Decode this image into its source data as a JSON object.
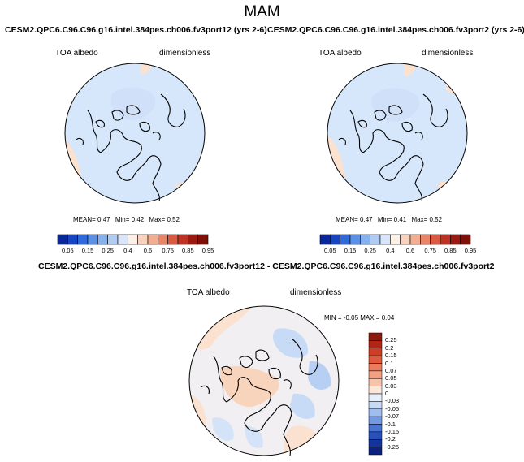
{
  "title": "MAM",
  "colors": {
    "ocean": "#d6e7fb",
    "warm": "#fbe1cf",
    "cool": "#c8dbf6",
    "coast": "#000000",
    "blue_dark": "#0b2f8f",
    "red_dark": "#8b1a0f"
  },
  "panels": [
    {
      "id": "panel-left",
      "title": "CESM2.QPC6.C96.C96.g16.intel.384pes.ch006.fv3port12 (yrs 2-6)",
      "variable": "TOA albedo",
      "units": "dimensionless",
      "stats": {
        "mean_label": "MEAN=",
        "mean": "0.47",
        "min_label": "Min=",
        "min": "0.42",
        "max_label": "Max=",
        "max": "0.52"
      }
    },
    {
      "id": "panel-right",
      "title": "CESM2.QPC6.C96.C96.g16.intel.384pes.ch006.fv3port2 (yrs 2-6)",
      "variable": "TOA albedo",
      "units": "dimensionless",
      "stats": {
        "mean_label": "MEAN=",
        "mean": "0.47",
        "min_label": "Min=",
        "min": "0.41",
        "max_label": "Max=",
        "max": "0.52"
      }
    },
    {
      "id": "panel-diff",
      "title": "CESM2.QPC6.C96.C96.g16.intel.384pes.ch006.fv3port12 - CESM2.QPC6.C96.C96.g16.intel.384pes.ch006.fv3port2",
      "variable": "TOA albedo",
      "units": "dimensionless",
      "stats_text": "MIN = -0.05 MAX = 0.04"
    }
  ],
  "colorbar_abs": {
    "ticks": [
      "0.05",
      "0.15",
      "0.25",
      "0.4",
      "0.6",
      "0.75",
      "0.85",
      "0.95"
    ],
    "colors": [
      "#08279a",
      "#1446c2",
      "#2e6bd9",
      "#5891e6",
      "#85b1ef",
      "#b0ccf5",
      "#d9e6fa",
      "#fdf0e6",
      "#f9d2bd",
      "#f3ad91",
      "#ea8466",
      "#d85a41",
      "#bd3323",
      "#9c1b10",
      "#7d1107"
    ]
  },
  "colorbar_diff": {
    "ticks": [
      "0.25",
      "0.2",
      "0.15",
      "0.1",
      "0.07",
      "0.05",
      "0.03",
      "0",
      "-0.03",
      "-0.05",
      "-0.07",
      "-0.1",
      "-0.15",
      "-0.2",
      "-0.25"
    ],
    "colors": [
      "#8b1a0f",
      "#b22414",
      "#cf3d24",
      "#e15a3d",
      "#ec7c5c",
      "#f39f82",
      "#f8c3ab",
      "#fce6da",
      "#e7effb",
      "#c8d9f5",
      "#9fbdee",
      "#7399e1",
      "#4a74d2",
      "#2a50bb",
      "#15339d",
      "#0b2280"
    ]
  }
}
